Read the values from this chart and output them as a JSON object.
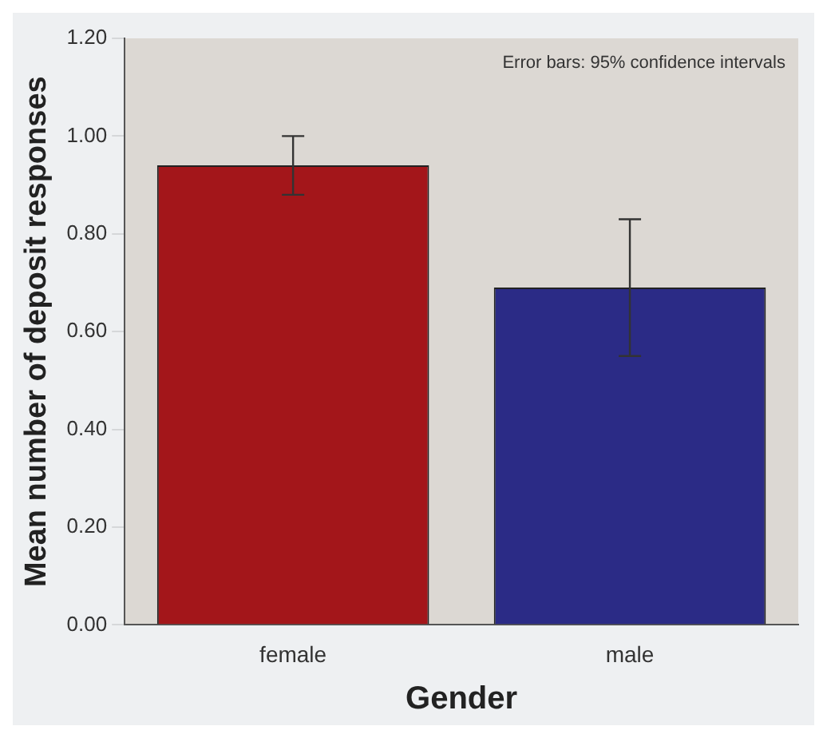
{
  "chart_data": {
    "type": "bar",
    "xlabel": "Gender",
    "ylabel": "Mean number of deposit responses",
    "categories": [
      "female",
      "male"
    ],
    "values": [
      0.94,
      0.69
    ],
    "colors": [
      "#a3161a",
      "#2b2b86"
    ],
    "errors": [
      0.06,
      0.14
    ],
    "ylim": [
      0,
      1.2
    ],
    "yticks": [
      {
        "value": 0,
        "label": "0.00"
      },
      {
        "value": 0.2,
        "label": "0.20"
      },
      {
        "value": 0.4,
        "label": "0.40"
      },
      {
        "value": 0.6,
        "label": "0.60"
      },
      {
        "value": 0.8,
        "label": "0.80"
      },
      {
        "value": 1,
        "label": "1.00"
      },
      {
        "value": 1.2,
        "label": "1.20"
      }
    ],
    "annotations": [
      "Error bars: 95% confidence intervals"
    ],
    "grid": false,
    "legend": false
  }
}
